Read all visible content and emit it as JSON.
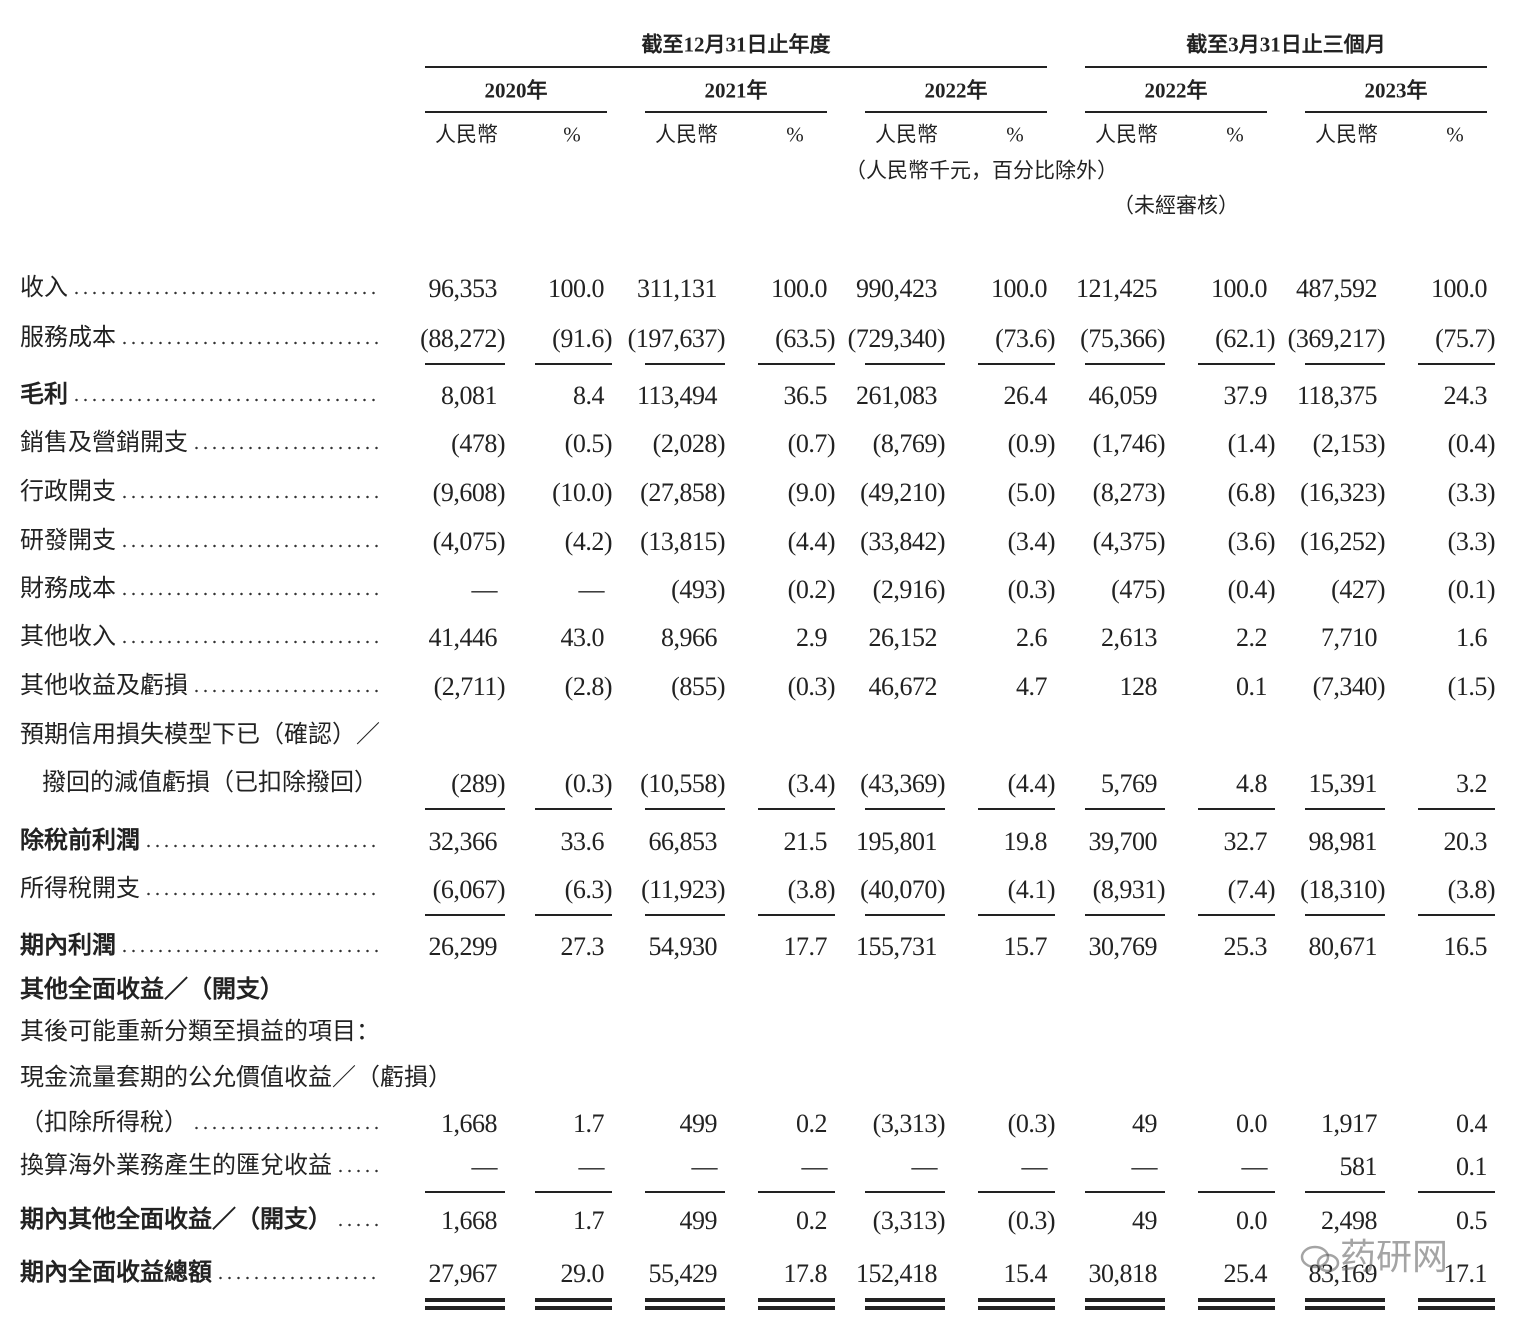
{
  "header": {
    "groups": [
      "截至12月31日止年度",
      "截至3月31日止三個月"
    ],
    "years": [
      "2020年",
      "2021年",
      "2022年",
      "2022年",
      "2023年"
    ],
    "column_headers": [
      "人民幣",
      "%"
    ],
    "currency_note": "（人民幣千元，百分比除外）",
    "audit_note": "（未經審核）"
  },
  "rows": [
    {
      "label": "收入",
      "values": [
        "96,353",
        "100.0",
        "311,131",
        "100.0",
        "990,423",
        "100.0",
        "121,425",
        "100.0",
        "487,592",
        "100.0"
      ]
    },
    {
      "label": "服務成本",
      "values": [
        "(88,272)",
        "(91.6)",
        "(197,637)",
        "(63.5)",
        "(729,340)",
        "(73.6)",
        "(75,366)",
        "(62.1)",
        "(369,217)",
        "(75.7)"
      ],
      "rule_below": "single"
    },
    {
      "label": "毛利",
      "bold": true,
      "values": [
        "8,081",
        "8.4",
        "113,494",
        "36.5",
        "261,083",
        "26.4",
        "46,059",
        "37.9",
        "118,375",
        "24.3"
      ]
    },
    {
      "label": "銷售及營銷開支",
      "values": [
        "(478)",
        "(0.5)",
        "(2,028)",
        "(0.7)",
        "(8,769)",
        "(0.9)",
        "(1,746)",
        "(1.4)",
        "(2,153)",
        "(0.4)"
      ]
    },
    {
      "label": "行政開支",
      "values": [
        "(9,608)",
        "(10.0)",
        "(27,858)",
        "(9.0)",
        "(49,210)",
        "(5.0)",
        "(8,273)",
        "(6.8)",
        "(16,323)",
        "(3.3)"
      ]
    },
    {
      "label": "研發開支",
      "values": [
        "(4,075)",
        "(4.2)",
        "(13,815)",
        "(4.4)",
        "(33,842)",
        "(3.4)",
        "(4,375)",
        "(3.6)",
        "(16,252)",
        "(3.3)"
      ]
    },
    {
      "label": "財務成本",
      "values": [
        "—",
        "—",
        "(493)",
        "(0.2)",
        "(2,916)",
        "(0.3)",
        "(475)",
        "(0.4)",
        "(427)",
        "(0.1)"
      ]
    },
    {
      "label": "其他收入",
      "values": [
        "41,446",
        "43.0",
        "8,966",
        "2.9",
        "26,152",
        "2.6",
        "2,613",
        "2.2",
        "7,710",
        "1.6"
      ]
    },
    {
      "label": "其他收益及虧損",
      "values": [
        "(2,711)",
        "(2.8)",
        "(855)",
        "(0.3)",
        "46,672",
        "4.7",
        "128",
        "0.1",
        "(7,340)",
        "(1.5)"
      ]
    },
    {
      "label": "預期信用損失模型下已（確認）／"
    },
    {
      "label": "撥回的減值虧損（已扣除撥回）",
      "values": [
        "(289)",
        "(0.3)",
        "(10,558)",
        "(3.4)",
        "(43,369)",
        "(4.4)",
        "5,769",
        "4.8",
        "15,391",
        "3.2"
      ],
      "rule_below": "single"
    },
    {
      "label": "除稅前利潤",
      "bold": true,
      "values": [
        "32,366",
        "33.6",
        "66,853",
        "21.5",
        "195,801",
        "19.8",
        "39,700",
        "32.7",
        "98,981",
        "20.3"
      ]
    },
    {
      "label": "所得稅開支",
      "values": [
        "(6,067)",
        "(6.3)",
        "(11,923)",
        "(3.8)",
        "(40,070)",
        "(4.1)",
        "(8,931)",
        "(7.4)",
        "(18,310)",
        "(3.8)"
      ],
      "rule_below": "single"
    },
    {
      "label": "期內利潤",
      "bold": true,
      "values": [
        "26,299",
        "27.3",
        "54,930",
        "17.7",
        "155,731",
        "15.7",
        "30,769",
        "25.3",
        "80,671",
        "16.5"
      ]
    },
    {
      "label": "其他全面收益／（開支）",
      "bold": true
    },
    {
      "label": "其後可能重新分類至損益的項目："
    },
    {
      "label": "現金流量套期的公允價值收益／（虧損）"
    },
    {
      "label": "（扣除所得稅）",
      "values": [
        "1,668",
        "1.7",
        "499",
        "0.2",
        "(3,313)",
        "(0.3)",
        "49",
        "0.0",
        "1,917",
        "0.4"
      ]
    },
    {
      "label": "換算海外業務產生的匯兌收益",
      "values": [
        "—",
        "—",
        "—",
        "—",
        "—",
        "—",
        "—",
        "—",
        "581",
        "0.1"
      ],
      "rule_below": "single"
    },
    {
      "label": "期內其他全面收益／（開支）",
      "bold": true,
      "values": [
        "1,668",
        "1.7",
        "499",
        "0.2",
        "(3,313)",
        "(0.3)",
        "49",
        "0.0",
        "2,498",
        "0.5"
      ]
    },
    {
      "label": "期內全面收益總額",
      "bold": true,
      "values": [
        "27,967",
        "29.0",
        "55,429",
        "17.8",
        "152,418",
        "15.4",
        "30,818",
        "25.4",
        "83,169",
        "17.1"
      ],
      "rule_below": "double"
    }
  ],
  "watermark": "药研网"
}
